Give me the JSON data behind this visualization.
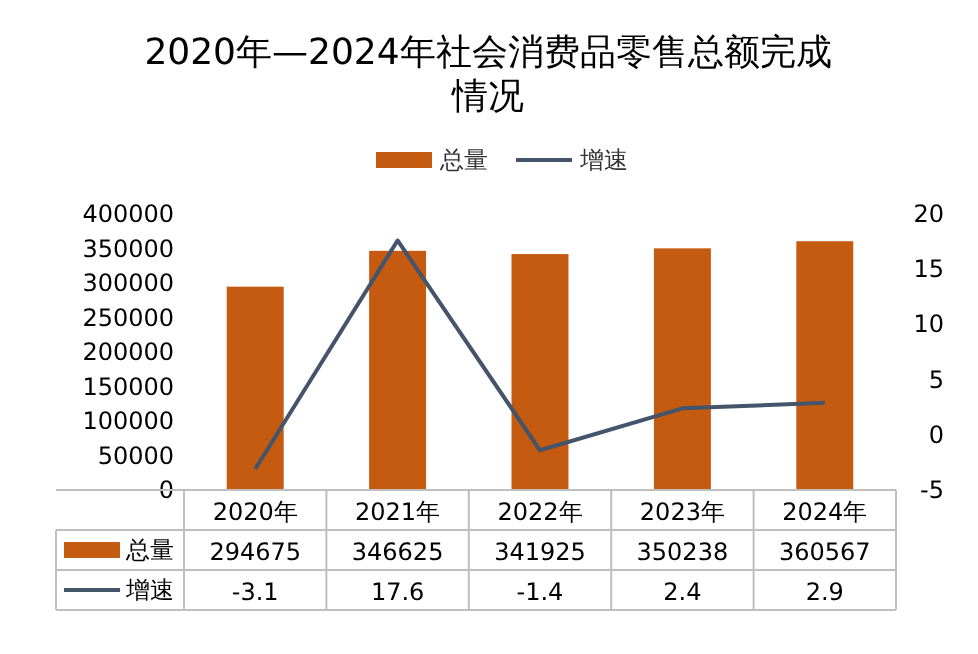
{
  "chart_data": {
    "type": "bar",
    "title": "2020年—2024年社会消费品零售总额完成情况",
    "categories": [
      "2020年",
      "2021年",
      "2022年",
      "2023年",
      "2024年"
    ],
    "series": [
      {
        "name": "总量",
        "color": "#c55a11",
        "values": [
          294675,
          346625,
          341925,
          350238,
          360567
        ]
      },
      {
        "name": "增速",
        "type": "line",
        "color": "#44546a",
        "axis": "y2",
        "values": [
          -3.1,
          17.6,
          -1.4,
          2.4,
          2.9
        ]
      }
    ],
    "ylim": [
      0,
      400000
    ],
    "yticks": [
      0,
      50000,
      100000,
      150000,
      200000,
      250000,
      300000,
      350000,
      400000
    ],
    "y2lim": [
      -5,
      20
    ],
    "y2ticks": [
      -5,
      0,
      5,
      10,
      15,
      20
    ],
    "legend": "top",
    "data_labels": true
  }
}
